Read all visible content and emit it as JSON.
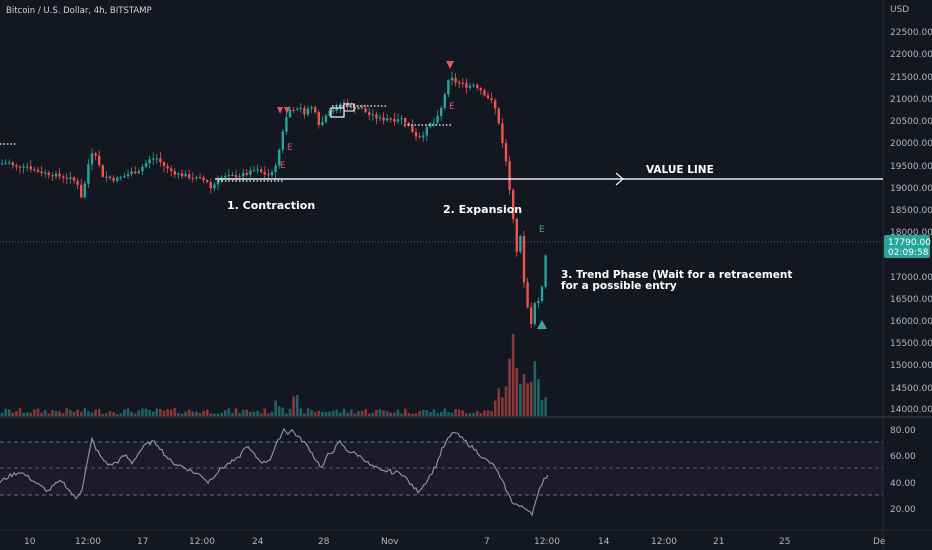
{
  "header": {
    "symbol_title": "Bitcoin / U.S. Dollar, 4h, BITSTAMP",
    "currency": "USD"
  },
  "price_axis": {
    "ticks": [
      "22500.00",
      "22000.00",
      "21500.00",
      "21000.00",
      "20500.00",
      "20000.00",
      "19500.00",
      "19000.00",
      "18500.00",
      "18000.00",
      "17000.00",
      "16500.00",
      "16000.00",
      "15500.00",
      "15000.00",
      "14500.00",
      "14000.00"
    ],
    "current_price": "17790.00",
    "countdown": "02:09:58",
    "current_price_color": "#26a69a"
  },
  "rsi_axis": {
    "ticks": [
      "80.00",
      "60.00",
      "40.00",
      "20.00"
    ],
    "levels": [
      70,
      50,
      30
    ]
  },
  "time_axis": {
    "labels": [
      "10",
      "12:00",
      "17",
      "12:00",
      "24",
      "28",
      "Nov",
      "7",
      "12:00",
      "14",
      "12:00",
      "21",
      "25",
      "De"
    ]
  },
  "annotations": {
    "value_line": "VALUE LINE",
    "contraction": "1. Contraction",
    "expansion": "2. Expansion",
    "trend_phase_line1": "3. Trend Phase (Wait for a retracement",
    "trend_phase_line2": "for a possible entry",
    "signal_letter": "E"
  },
  "colors": {
    "background": "#131722",
    "up": "#26a69a",
    "down": "#ef5350",
    "rsi_line": "#9598a1",
    "rsi_band": "#1e1a2e",
    "value_line": "#e6f0ee",
    "signal_down": "#e0585f",
    "signal_up": "#3fa59a"
  },
  "chart_data": {
    "type": "candlestick",
    "symbol": "Bitcoin / U.S. Dollar",
    "interval": "4h",
    "exchange": "BITSTAMP",
    "y_unit": "USD",
    "ylim": [
      13900,
      22750
    ],
    "value_line": 19200,
    "last_price": 17790,
    "price_path": [
      [
        0,
        19500
      ],
      [
        8,
        19550
      ],
      [
        15,
        19420
      ],
      [
        25,
        19480
      ],
      [
        35,
        19360
      ],
      [
        45,
        19300
      ],
      [
        55,
        19250
      ],
      [
        65,
        19200
      ],
      [
        72,
        19150
      ],
      [
        78,
        19050
      ],
      [
        82,
        18700
      ],
      [
        86,
        19200
      ],
      [
        90,
        19700
      ],
      [
        94,
        19850
      ],
      [
        98,
        19550
      ],
      [
        102,
        19250
      ],
      [
        108,
        19200
      ],
      [
        115,
        19150
      ],
      [
        122,
        19200
      ],
      [
        130,
        19300
      ],
      [
        138,
        19350
      ],
      [
        145,
        19500
      ],
      [
        150,
        19600
      ],
      [
        156,
        19650
      ],
      [
        162,
        19500
      ],
      [
        168,
        19380
      ],
      [
        175,
        19300
      ],
      [
        182,
        19250
      ],
      [
        188,
        19220
      ],
      [
        195,
        19180
      ],
      [
        202,
        19150
      ],
      [
        208,
        19100
      ],
      [
        212,
        18900
      ],
      [
        216,
        19150
      ],
      [
        222,
        19200
      ],
      [
        230,
        19220
      ],
      [
        240,
        19250
      ],
      [
        248,
        19280
      ],
      [
        255,
        19380
      ],
      [
        262,
        19300
      ],
      [
        268,
        19250
      ],
      [
        272,
        19280
      ],
      [
        276,
        19500
      ],
      [
        280,
        19900
      ],
      [
        284,
        20400
      ],
      [
        288,
        20650
      ],
      [
        292,
        20800
      ],
      [
        296,
        20700
      ],
      [
        300,
        20750
      ],
      [
        305,
        20650
      ],
      [
        310,
        20800
      ],
      [
        316,
        20700
      ],
      [
        320,
        20300
      ],
      [
        325,
        20600
      ],
      [
        330,
        20750
      ],
      [
        336,
        20700
      ],
      [
        342,
        20900
      ],
      [
        346,
        20850
      ],
      [
        352,
        20750
      ],
      [
        358,
        20800
      ],
      [
        364,
        20700
      ],
      [
        370,
        20600
      ],
      [
        376,
        20550
      ],
      [
        382,
        20500
      ],
      [
        388,
        20550
      ],
      [
        394,
        20500
      ],
      [
        400,
        20550
      ],
      [
        406,
        20450
      ],
      [
        412,
        20250
      ],
      [
        418,
        20100
      ],
      [
        424,
        20200
      ],
      [
        430,
        20400
      ],
      [
        436,
        20450
      ],
      [
        442,
        20800
      ],
      [
        446,
        21200
      ],
      [
        450,
        21450
      ],
      [
        456,
        21350
      ],
      [
        462,
        21300
      ],
      [
        468,
        21250
      ],
      [
        474,
        21300
      ],
      [
        480,
        21200
      ],
      [
        486,
        21050
      ],
      [
        492,
        20900
      ],
      [
        496,
        20700
      ],
      [
        500,
        20300
      ],
      [
        504,
        19800
      ],
      [
        508,
        19300
      ],
      [
        511,
        18600
      ],
      [
        514,
        18200
      ],
      [
        517,
        17500
      ],
      [
        520,
        18000
      ],
      [
        522,
        17200
      ],
      [
        525,
        16700
      ],
      [
        528,
        16200
      ],
      [
        531,
        15900
      ],
      [
        534,
        16300
      ],
      [
        537,
        16500
      ],
      [
        540,
        16300
      ],
      [
        543,
        17000
      ],
      [
        546,
        17500
      ],
      [
        549,
        17790
      ]
    ],
    "rsi_path": [
      [
        0,
        37
      ],
      [
        10,
        42
      ],
      [
        20,
        45
      ],
      [
        30,
        40
      ],
      [
        40,
        34
      ],
      [
        48,
        30
      ],
      [
        55,
        35
      ],
      [
        62,
        38
      ],
      [
        70,
        30
      ],
      [
        76,
        24
      ],
      [
        82,
        32
      ],
      [
        88,
        55
      ],
      [
        92,
        70
      ],
      [
        96,
        63
      ],
      [
        102,
        55
      ],
      [
        110,
        50
      ],
      [
        118,
        53
      ],
      [
        125,
        58
      ],
      [
        132,
        52
      ],
      [
        140,
        61
      ],
      [
        146,
        66
      ],
      [
        152,
        68
      ],
      [
        158,
        66
      ],
      [
        165,
        58
      ],
      [
        172,
        52
      ],
      [
        180,
        50
      ],
      [
        188,
        47
      ],
      [
        195,
        44
      ],
      [
        202,
        42
      ],
      [
        208,
        37
      ],
      [
        214,
        42
      ],
      [
        222,
        48
      ],
      [
        230,
        52
      ],
      [
        238,
        55
      ],
      [
        246,
        65
      ],
      [
        252,
        60
      ],
      [
        258,
        55
      ],
      [
        264,
        52
      ],
      [
        270,
        55
      ],
      [
        276,
        65
      ],
      [
        280,
        72
      ],
      [
        284,
        78
      ],
      [
        288,
        75
      ],
      [
        292,
        77
      ],
      [
        298,
        72
      ],
      [
        304,
        68
      ],
      [
        310,
        62
      ],
      [
        316,
        54
      ],
      [
        322,
        48
      ],
      [
        328,
        58
      ],
      [
        334,
        62
      ],
      [
        340,
        68
      ],
      [
        346,
        62
      ],
      [
        352,
        60
      ],
      [
        358,
        58
      ],
      [
        364,
        55
      ],
      [
        370,
        50
      ],
      [
        376,
        48
      ],
      [
        382,
        45
      ],
      [
        388,
        46
      ],
      [
        394,
        44
      ],
      [
        400,
        45
      ],
      [
        406,
        40
      ],
      [
        412,
        34
      ],
      [
        418,
        30
      ],
      [
        424,
        35
      ],
      [
        430,
        42
      ],
      [
        436,
        50
      ],
      [
        442,
        62
      ],
      [
        448,
        70
      ],
      [
        454,
        76
      ],
      [
        460,
        72
      ],
      [
        466,
        68
      ],
      [
        472,
        64
      ],
      [
        478,
        60
      ],
      [
        484,
        55
      ],
      [
        490,
        52
      ],
      [
        496,
        48
      ],
      [
        500,
        40
      ],
      [
        504,
        35
      ],
      [
        508,
        28
      ],
      [
        512,
        22
      ],
      [
        516,
        20
      ],
      [
        520,
        18
      ],
      [
        524,
        17
      ],
      [
        528,
        16
      ],
      [
        532,
        13
      ],
      [
        536,
        22
      ],
      [
        540,
        32
      ],
      [
        544,
        40
      ],
      [
        548,
        42
      ]
    ]
  }
}
